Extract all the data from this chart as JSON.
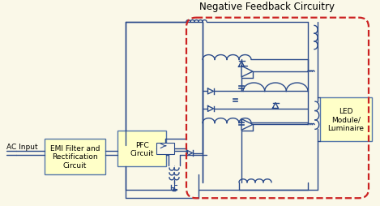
{
  "bg_color": "#faf8e8",
  "line_color": "#2a4a8a",
  "dashed_box_color": "#cc2222",
  "box_fill_color": "#ffffc8",
  "box_edge_color": "#5577aa",
  "title": "Negative Feedback Circuitry",
  "title_fontsize": 8.5,
  "label_ac": "AC Input",
  "label_emi": "EMI Filter and\nRectification\nCircuit",
  "label_pfc": "PFC\nCircuit",
  "label_led": "LED\nModule/\nLuminaire",
  "font_size_labels": 6.5,
  "font_size_small": 5.5,
  "lw": 1.0
}
